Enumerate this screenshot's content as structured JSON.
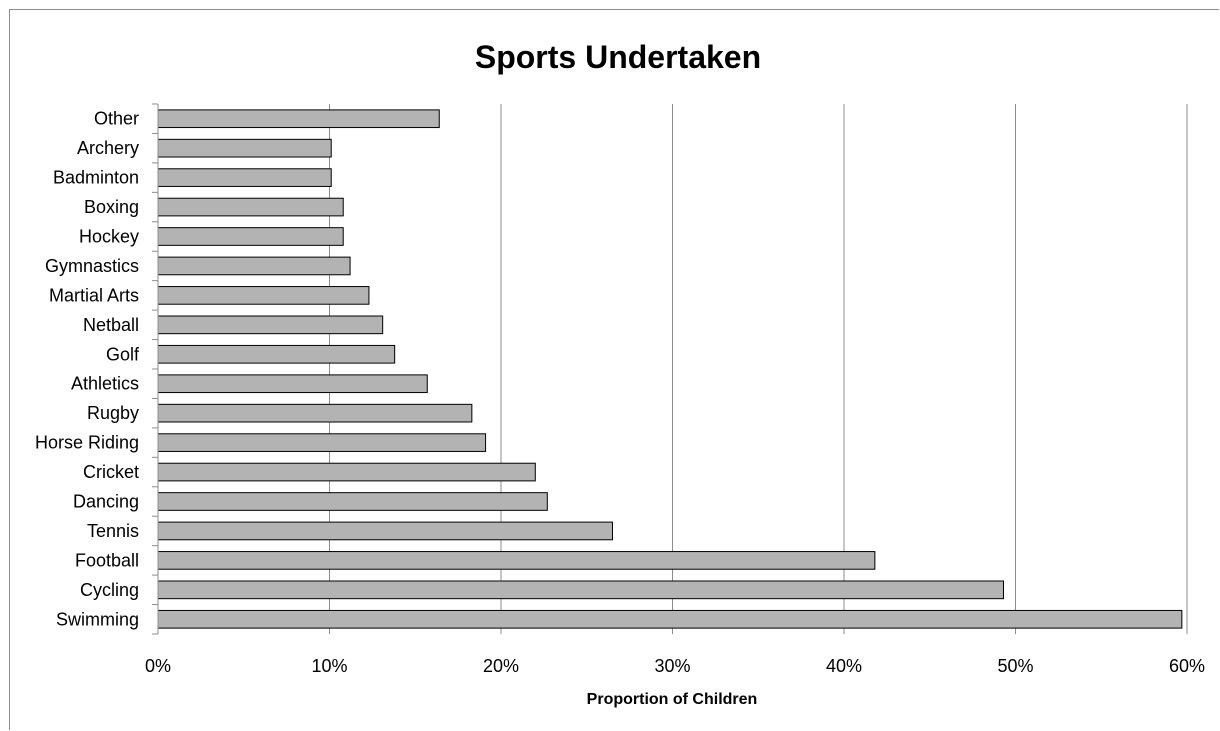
{
  "chart_data": {
    "type": "bar",
    "orientation": "horizontal",
    "title": "Sports Undertaken",
    "xlabel": "Proportion of Children",
    "ylabel": "",
    "xlim": [
      0,
      60
    ],
    "x_ticks": [
      "0%",
      "10%",
      "20%",
      "30%",
      "40%",
      "50%",
      "60%"
    ],
    "grid": true,
    "legend": "none",
    "bar_color": "#b3b3b3",
    "bar_edge_color": "#000000",
    "categories": [
      "Other",
      "Archery",
      "Badminton",
      "Boxing",
      "Hockey",
      "Gymnastics",
      "Martial Arts",
      "Netball",
      "Golf",
      "Athletics",
      "Rugby",
      "Horse Riding",
      "Cricket",
      "Dancing",
      "Tennis",
      "Football",
      "Cycling",
      "Swimming"
    ],
    "values": [
      16.4,
      10.1,
      10.1,
      10.8,
      10.8,
      11.2,
      12.3,
      13.1,
      13.8,
      15.7,
      18.3,
      19.1,
      22.0,
      22.7,
      26.5,
      41.8,
      49.3,
      59.7
    ]
  }
}
